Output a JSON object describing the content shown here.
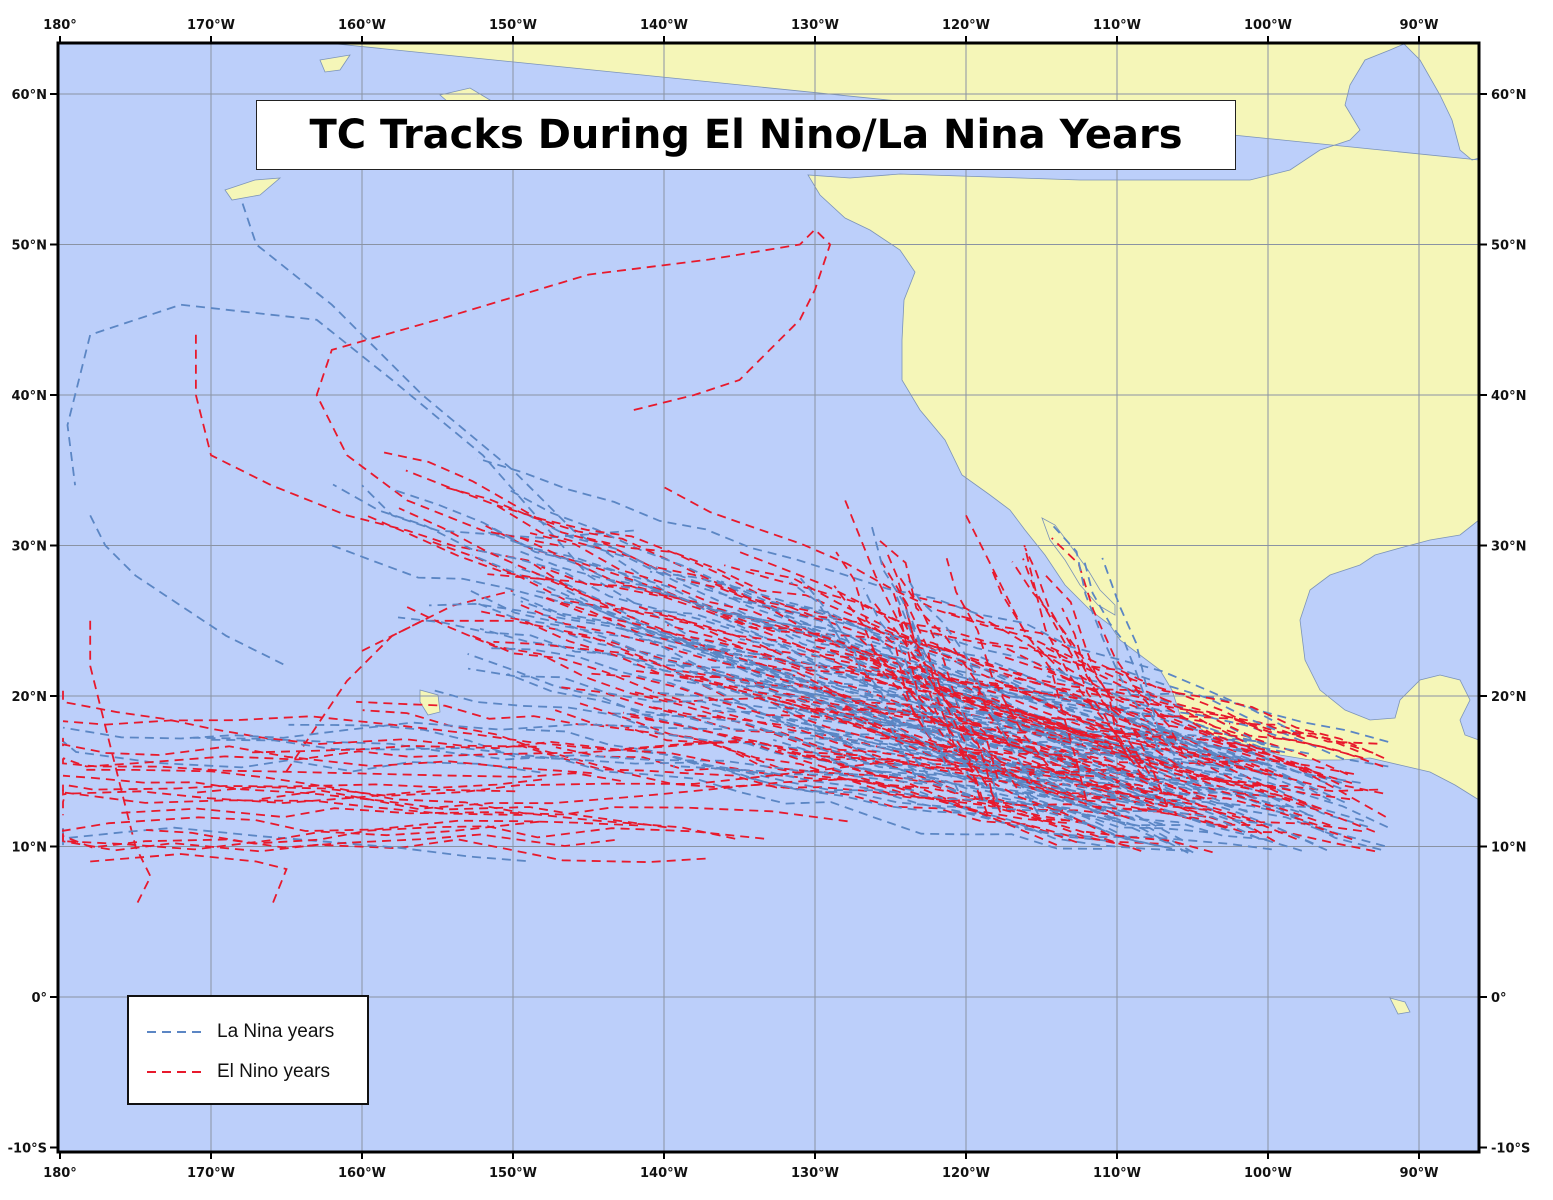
{
  "title": "TC Tracks During El Nino/La Nina Years",
  "map": {
    "lon_range": [
      180,
      -86
    ],
    "lat_range": [
      -10,
      63
    ],
    "lon_labels": [
      "180°",
      "170°W",
      "160°W",
      "150°W",
      "140°W",
      "130°W",
      "120°W",
      "110°W",
      "100°W",
      "90°W"
    ],
    "lat_labels": [
      "60°N",
      "50°N",
      "40°N",
      "30°N",
      "20°N",
      "10°N",
      "0°",
      "-10°S"
    ],
    "colors": {
      "ocean": "#bccffa",
      "land": "#f5f6b8",
      "la_nina": "#5b86c4",
      "el_nino": "#e8192c"
    }
  },
  "legend": {
    "items": [
      {
        "label": "La Nina years",
        "color": "#5b86c4"
      },
      {
        "label": "El Nino years",
        "color": "#e8192c"
      }
    ]
  }
}
